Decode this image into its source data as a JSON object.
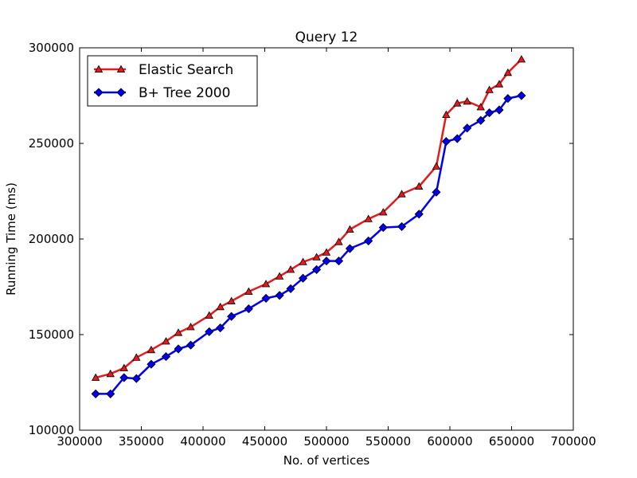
{
  "chart_data": {
    "type": "line",
    "title": "Query 12",
    "xlabel": "No. of vertices",
    "ylabel": "Running Time (ms)",
    "xlim": [
      300000,
      700000
    ],
    "ylim": [
      100000,
      300000
    ],
    "xticks": [
      300000,
      350000,
      400000,
      450000,
      500000,
      550000,
      600000,
      650000,
      700000
    ],
    "yticks": [
      100000,
      150000,
      200000,
      250000,
      300000
    ],
    "grid": false,
    "legend_position": "top-left",
    "series": [
      {
        "name": "Elastic Search",
        "color": "#e41a1c",
        "marker": "triangle",
        "points": [
          [
            313000,
            127500
          ],
          [
            325000,
            129500
          ],
          [
            336000,
            132500
          ],
          [
            346000,
            138000
          ],
          [
            358000,
            142000
          ],
          [
            370000,
            146500
          ],
          [
            380000,
            151000
          ],
          [
            390000,
            154000
          ],
          [
            405000,
            160000
          ],
          [
            414000,
            164500
          ],
          [
            423000,
            167500
          ],
          [
            437000,
            172500
          ],
          [
            451000,
            176500
          ],
          [
            462000,
            180500
          ],
          [
            471000,
            184000
          ],
          [
            481000,
            188000
          ],
          [
            492000,
            190500
          ],
          [
            500000,
            193000
          ],
          [
            510000,
            198500
          ],
          [
            519000,
            205000
          ],
          [
            534000,
            210500
          ],
          [
            546000,
            214000
          ],
          [
            561000,
            223500
          ],
          [
            575000,
            227500
          ],
          [
            589000,
            238000
          ],
          [
            597000,
            265000
          ],
          [
            606000,
            271000
          ],
          [
            614000,
            272000
          ],
          [
            625000,
            269000
          ],
          [
            632000,
            278000
          ],
          [
            640000,
            281000
          ],
          [
            647000,
            287000
          ],
          [
            658000,
            294000
          ]
        ]
      },
      {
        "name": "B+ Tree 2000",
        "color": "#0000ee",
        "marker": "diamond",
        "points": [
          [
            313000,
            119000
          ],
          [
            325000,
            119000
          ],
          [
            336000,
            127500
          ],
          [
            346000,
            127000
          ],
          [
            358000,
            134500
          ],
          [
            370000,
            138500
          ],
          [
            380000,
            142500
          ],
          [
            390000,
            144500
          ],
          [
            405000,
            151500
          ],
          [
            414000,
            153500
          ],
          [
            423000,
            159500
          ],
          [
            437000,
            163500
          ],
          [
            451000,
            169000
          ],
          [
            462000,
            170500
          ],
          [
            471000,
            174000
          ],
          [
            481000,
            179500
          ],
          [
            492000,
            184000
          ],
          [
            500000,
            188500
          ],
          [
            510000,
            188500
          ],
          [
            519000,
            195000
          ],
          [
            534000,
            199000
          ],
          [
            546000,
            206000
          ],
          [
            561000,
            206500
          ],
          [
            575000,
            213000
          ],
          [
            589000,
            224500
          ],
          [
            597000,
            251000
          ],
          [
            606000,
            252500
          ],
          [
            614000,
            258000
          ],
          [
            625000,
            262000
          ],
          [
            632000,
            266000
          ],
          [
            640000,
            267500
          ],
          [
            647000,
            273500
          ],
          [
            658000,
            275000
          ]
        ]
      }
    ]
  }
}
